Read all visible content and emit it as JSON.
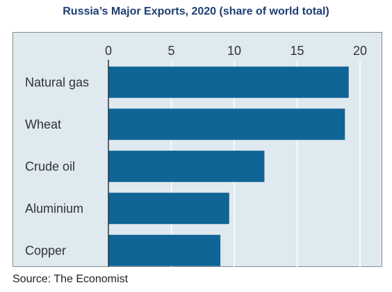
{
  "chart_data": {
    "type": "bar",
    "orientation": "horizontal",
    "title": "Russia’s Major Exports, 2020 (share of world total)",
    "categories": [
      "Natural gas",
      "Wheat",
      "Crude oil",
      "Aluminium",
      "Copper"
    ],
    "values": [
      19.1,
      18.8,
      12.4,
      9.6,
      8.9
    ],
    "xlim": [
      0,
      20
    ],
    "xticks": [
      0,
      5,
      10,
      15,
      20
    ],
    "xaxis_position": "top",
    "grid": true,
    "legend": "none",
    "colors": {
      "bar": "#0e6596",
      "background": "#dfe9f0",
      "grid": "#ffffff",
      "title": "#1d3e72"
    }
  },
  "source": "Source: The Economist"
}
